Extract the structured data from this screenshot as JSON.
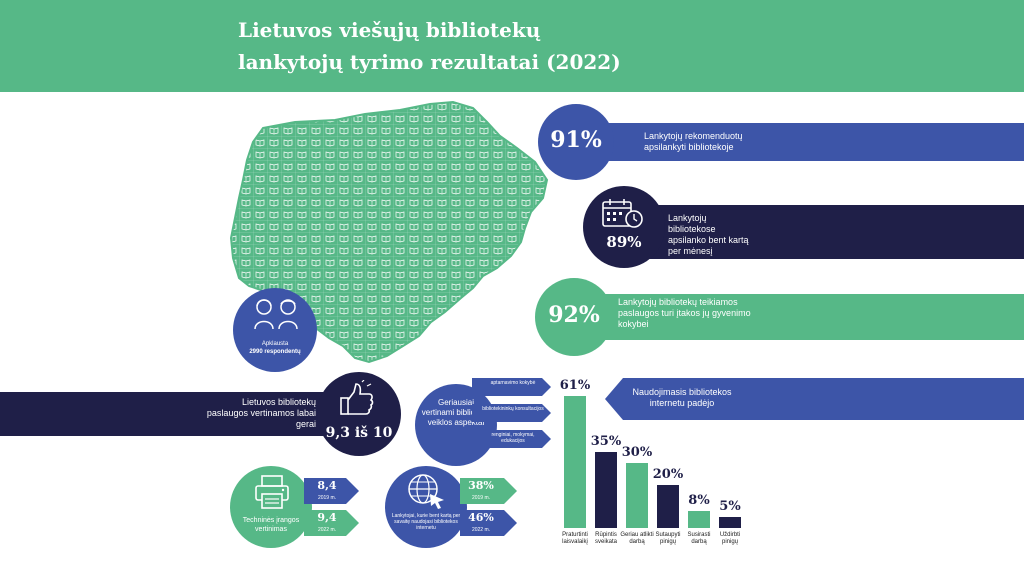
{
  "header": {
    "title_line1": "Lietuvos viešųjų bibliotekų",
    "title_line2": "lankytojų tyrimo rezultatai (2022)"
  },
  "colors": {
    "green": "#56b887",
    "blue": "#3d55a8",
    "navy": "#1f1f48",
    "light_green": "#7cc89e"
  },
  "stats": {
    "recommend": {
      "value": "91%",
      "text": "Lankytojų rekomenduotų apsilankyti bibliotekoje"
    },
    "monthly": {
      "value": "89%",
      "text": "Lankytojų bibliotekose apsilanko bent kartą per mėnesį",
      "icon": "calendar-clock-icon"
    },
    "quality": {
      "value": "92%",
      "text": "Lankytojų bibliotekų teikiamos paslaugos turi įtakos jų gyvenimo kokybei"
    },
    "respondents": {
      "text1": "Apklausta",
      "text2": "2990 respondentų",
      "icon": "people-icon"
    },
    "rating": {
      "text": "Lietuvos bibliotekų paslaugos vertinamos labai gerai",
      "value": "9,3 iš 10",
      "icon": "thumbs-up-icon"
    },
    "aspects": {
      "title": "Geriausiai vertinami bibliotekų veiklos aspektai",
      "items": [
        "aptarnavimo kokybė",
        "bibliotekininkų konsultacijos",
        "renginiai, mokymai, edukacijos"
      ]
    },
    "equipment": {
      "title": "Techninės įrangos vertinimas",
      "icon": "printer-icon",
      "v2019": "8,4",
      "y2019": "2019 m.",
      "v2022": "9,4",
      "y2022": "2022 m."
    },
    "internet": {
      "title": "Lankytojai, kurie bent kartą per savaitę naudojasi bibliotekos internetu",
      "icon": "globe-cursor-icon",
      "v2019": "38%",
      "y2019": "2019 m.",
      "v2022": "46%",
      "y2022": "2022 m."
    }
  },
  "chart_data": {
    "type": "bar",
    "title": "Naudojimasis bibliotekos internetu padėjo",
    "categories": [
      "Praturtinti laisvalaikį",
      "Rūpintis sveikata",
      "Geriau atlikti darbą",
      "Sutaupyti pinigų",
      "Susirasti darbą",
      "Uždirbti pinigų"
    ],
    "values": [
      61,
      35,
      30,
      20,
      8,
      5
    ],
    "value_labels": [
      "61%",
      "35%",
      "30%",
      "20%",
      "8%",
      "5%"
    ],
    "bar_colors": [
      "#56b887",
      "#1f1f48",
      "#56b887",
      "#1f1f48",
      "#56b887",
      "#1f1f48"
    ],
    "ylim": [
      0,
      61
    ]
  }
}
